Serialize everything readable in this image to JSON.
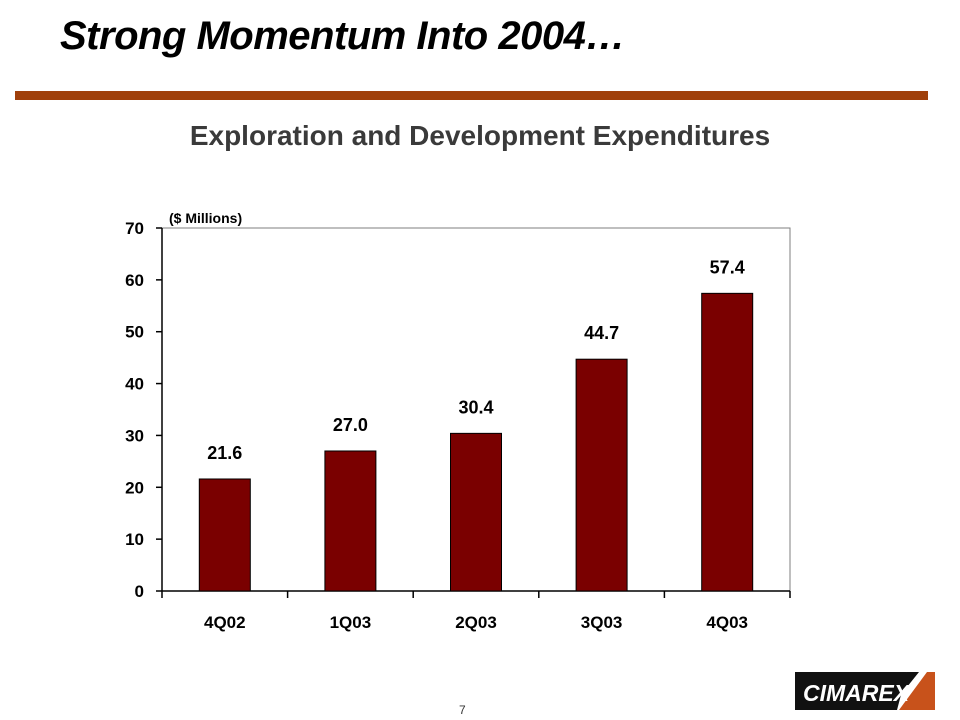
{
  "slide": {
    "title": "Strong Momentum Into 2004…",
    "page_number": "7",
    "logo_text": "CIMAREX"
  },
  "colors": {
    "rule": "#a0400b",
    "bar": "#7a0000",
    "title_text": "#3a3a3a"
  },
  "chart_data": {
    "type": "bar",
    "title": "Exploration and Development Expenditures",
    "unit_label": "($ Millions)",
    "categories": [
      "4Q02",
      "1Q03",
      "2Q03",
      "3Q03",
      "4Q03"
    ],
    "values": [
      21.6,
      27.0,
      30.4,
      44.7,
      57.4
    ],
    "data_labels": [
      "21.6",
      "27.0",
      "30.4",
      "44.7",
      "57.4"
    ],
    "ylim": [
      0,
      70
    ],
    "yticks": [
      0,
      10,
      20,
      30,
      40,
      50,
      60,
      70
    ],
    "grid": false,
    "legend": "none"
  }
}
